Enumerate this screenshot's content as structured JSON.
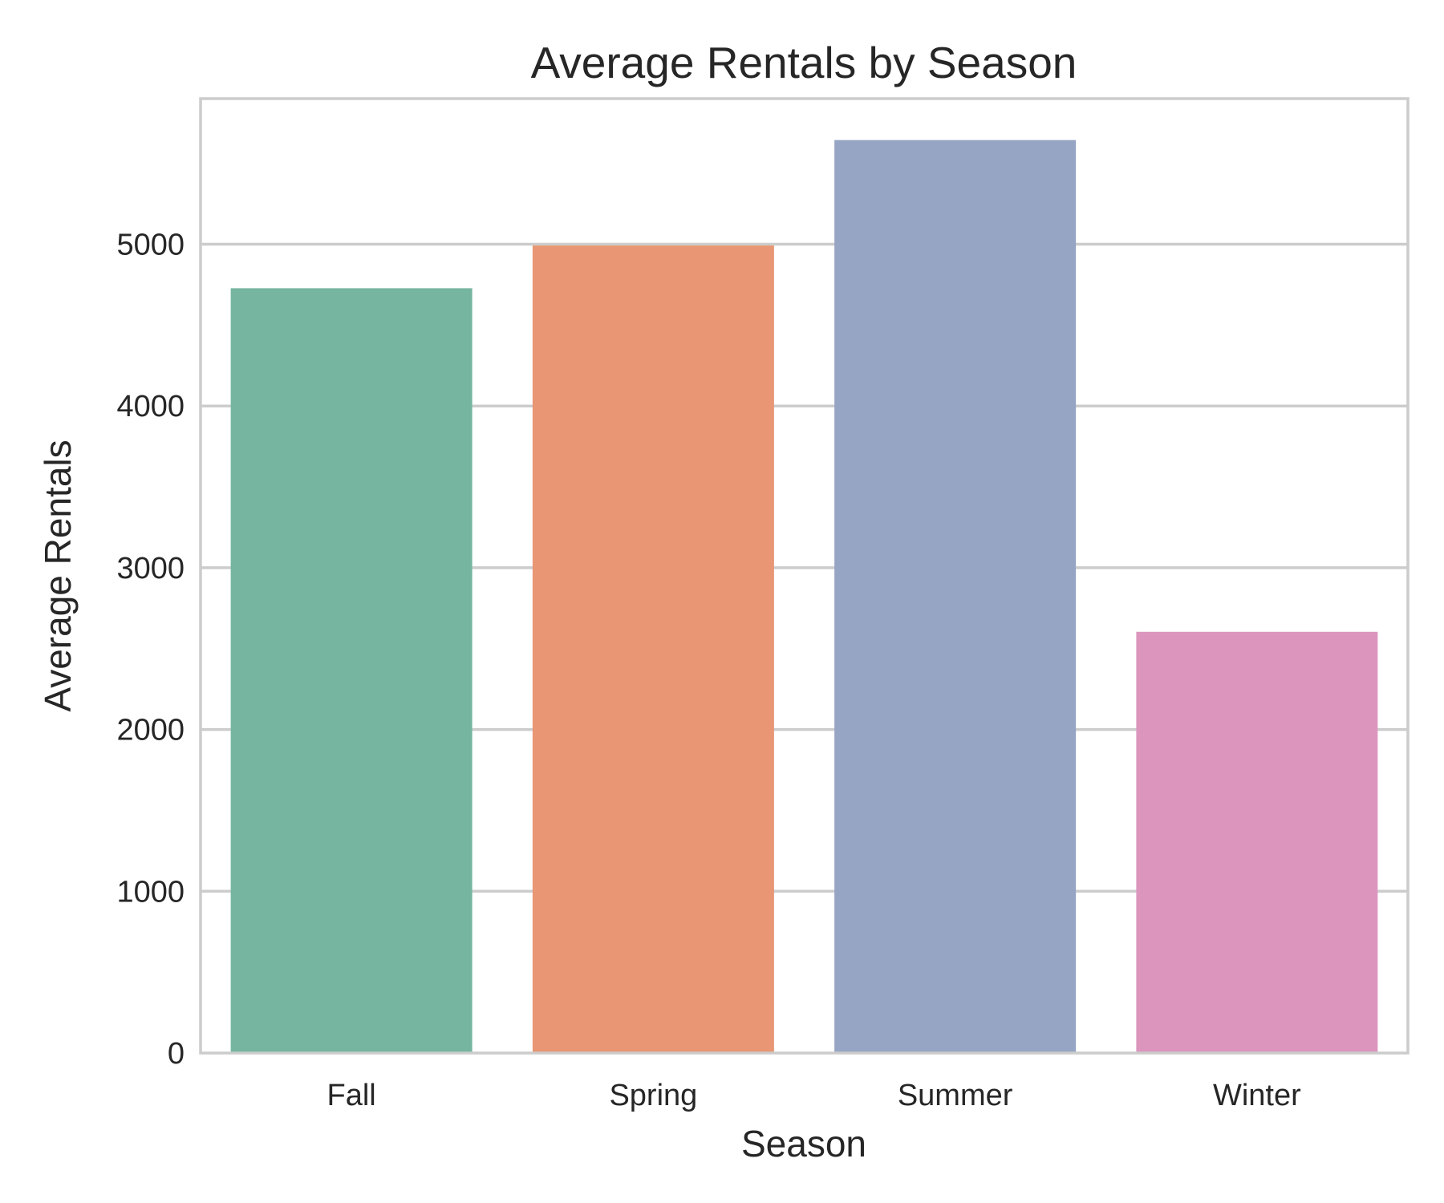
{
  "chart_data": {
    "type": "bar",
    "title": "Average Rentals by Season",
    "xlabel": "Season",
    "ylabel": "Average Rentals",
    "categories": [
      "Fall",
      "Spring",
      "Summer",
      "Winter"
    ],
    "values": [
      4728,
      4992,
      5644,
      2604
    ],
    "colors": [
      "#76b5a0",
      "#e89674",
      "#96a5c3",
      "#dc96be"
    ],
    "ylim": [
      0,
      5900
    ],
    "yticks": [
      0,
      1000,
      2000,
      3000,
      4000,
      5000
    ],
    "ytick_labels": [
      "0",
      "1000",
      "2000",
      "3000",
      "4000",
      "5000"
    ],
    "grid": "horizontal",
    "grid_color": "#cccccc",
    "legend": "none"
  }
}
